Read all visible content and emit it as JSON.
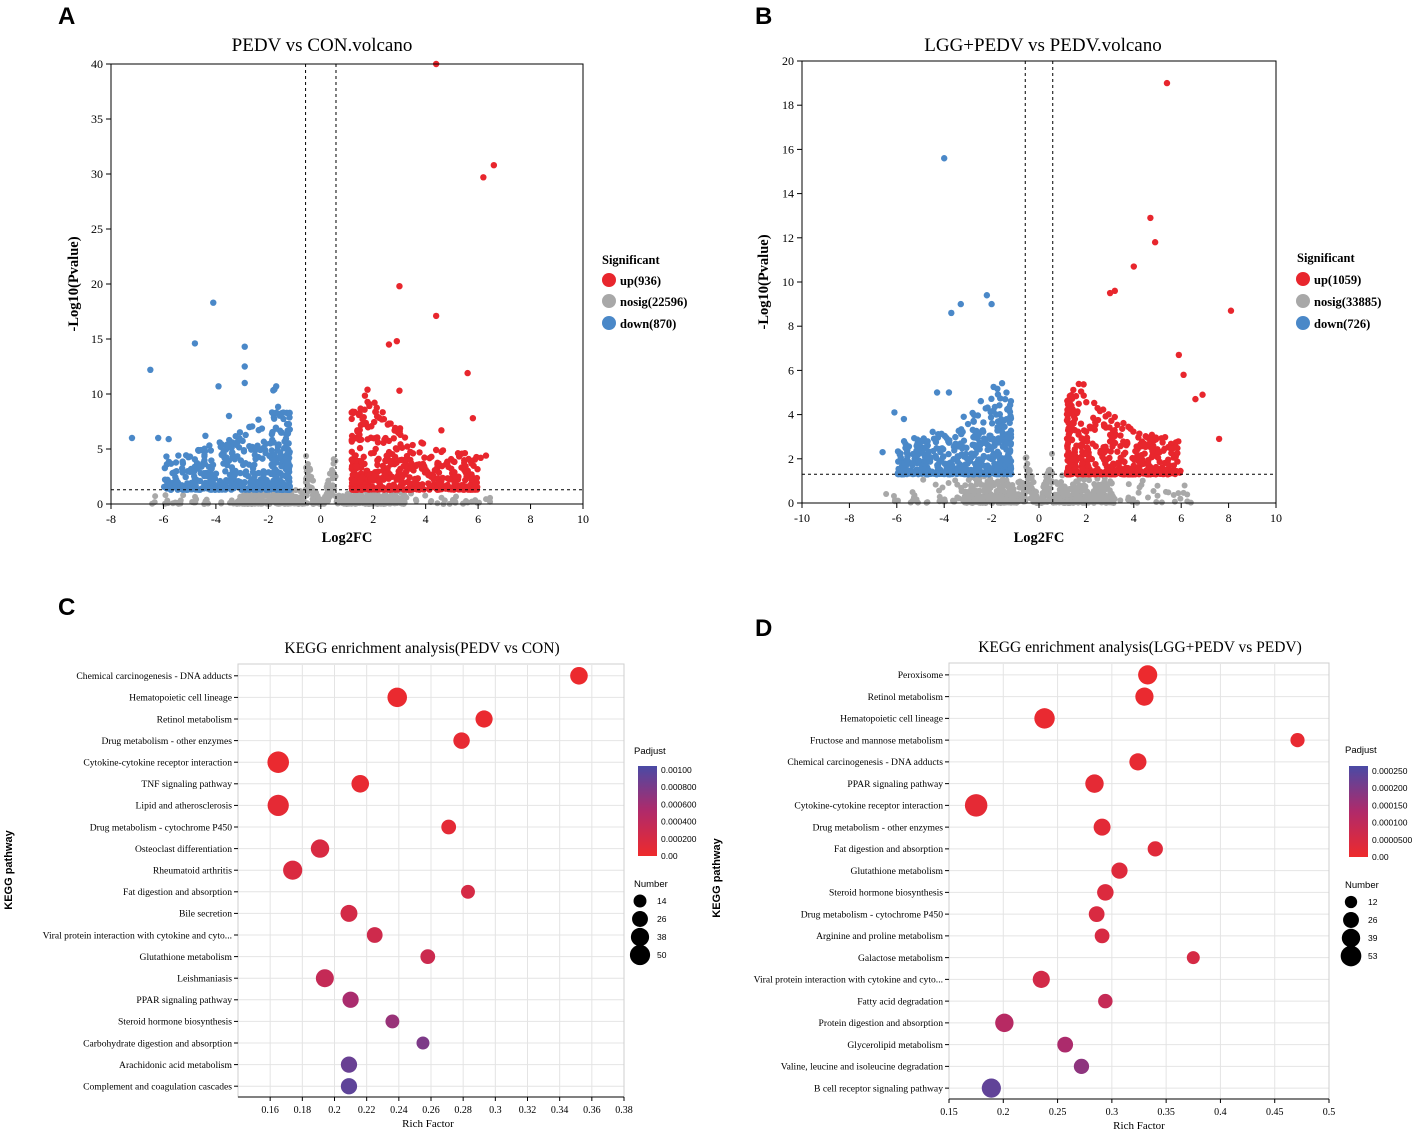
{
  "panel_labels": [
    "A",
    "B",
    "C",
    "D"
  ],
  "chart_data": [
    {
      "id": "A",
      "type": "scatter",
      "title": "PEDV vs CON.volcano",
      "xlabel": "Log2FC",
      "ylabel": "-Log10(Pvalue)",
      "xlim": [
        -8,
        10
      ],
      "ylim": [
        0,
        40
      ],
      "xticks": [
        -8,
        -6,
        -4,
        -2,
        0,
        2,
        4,
        6,
        8,
        10
      ],
      "yticks": [
        0,
        5,
        10,
        15,
        20,
        25,
        30,
        35,
        40
      ],
      "fc_threshold": 0.58,
      "p_threshold": 1.3,
      "legend": {
        "title": "Significant",
        "items": [
          {
            "label": "up(936)",
            "color": "#e8262d"
          },
          {
            "label": "nosig(22596)",
            "color": "#a8a8a8"
          },
          {
            "label": "down(870)",
            "color": "#4a88c8"
          }
        ]
      },
      "highlight_points": {
        "up": [
          [
            4.4,
            40
          ],
          [
            6.6,
            30.8
          ],
          [
            6.2,
            29.7
          ],
          [
            3.0,
            19.8
          ],
          [
            4.4,
            17.1
          ],
          [
            2.9,
            14.8
          ],
          [
            2.6,
            14.5
          ],
          [
            5.6,
            11.9
          ],
          [
            3.0,
            10.3
          ],
          [
            5.8,
            7.8
          ],
          [
            6.3,
            4.4
          ],
          [
            6.1,
            4.2
          ],
          [
            4.6,
            6.7
          ]
        ],
        "down": [
          [
            -4.1,
            18.3
          ],
          [
            -4.8,
            14.6
          ],
          [
            -2.9,
            14.3
          ],
          [
            -6.5,
            12.2
          ],
          [
            -2.9,
            12.5
          ],
          [
            -1.7,
            10.7
          ],
          [
            -2.9,
            11.0
          ],
          [
            -3.9,
            10.7
          ],
          [
            -7.2,
            6.0
          ],
          [
            -6.2,
            6.0
          ],
          [
            -5.8,
            5.9
          ],
          [
            -4.4,
            6.2
          ],
          [
            -3.5,
            8.0
          ]
        ]
      }
    },
    {
      "id": "B",
      "type": "scatter",
      "title": "LGG+PEDV vs PEDV.volcano",
      "xlabel": "Log2FC",
      "ylabel": "-Log10(Pvalue)",
      "xlim": [
        -10,
        10
      ],
      "ylim": [
        0,
        20
      ],
      "xticks": [
        -10,
        -8,
        -6,
        -4,
        -2,
        0,
        2,
        4,
        6,
        8,
        10
      ],
      "yticks": [
        0,
        2,
        4,
        6,
        8,
        10,
        12,
        14,
        16,
        18,
        20
      ],
      "fc_threshold": 0.58,
      "p_threshold": 1.3,
      "legend": {
        "title": "Significant",
        "items": [
          {
            "label": "up(1059)",
            "color": "#e8262d"
          },
          {
            "label": "nosig(33885)",
            "color": "#a8a8a8"
          },
          {
            "label": "down(726)",
            "color": "#4a88c8"
          }
        ]
      },
      "highlight_points": {
        "up": [
          [
            5.4,
            19.0
          ],
          [
            4.7,
            12.9
          ],
          [
            4.9,
            11.8
          ],
          [
            4.0,
            10.7
          ],
          [
            3.2,
            9.6
          ],
          [
            8.1,
            8.7
          ],
          [
            3.0,
            9.5
          ],
          [
            7.6,
            2.9
          ],
          [
            5.9,
            6.7
          ],
          [
            6.1,
            5.8
          ],
          [
            6.6,
            4.7
          ],
          [
            6.9,
            4.9
          ]
        ],
        "down": [
          [
            -4.0,
            15.6
          ],
          [
            -2.2,
            9.4
          ],
          [
            -3.3,
            9.0
          ],
          [
            -3.7,
            8.6
          ],
          [
            -2.0,
            9.0
          ],
          [
            -6.1,
            4.1
          ],
          [
            -5.7,
            3.8
          ],
          [
            -6.6,
            2.3
          ],
          [
            -4.3,
            5.0
          ],
          [
            -3.8,
            5.0
          ],
          [
            -5.0,
            2.8
          ]
        ]
      }
    },
    {
      "id": "C",
      "type": "scatter",
      "title": "KEGG enrichment analysis(PEDV vs CON)",
      "xlabel": "Rich Factor",
      "ylabel": "KEGG pathway",
      "xlim": [
        0.14,
        0.38
      ],
      "xticks": [
        0.16,
        0.18,
        0.2,
        0.22,
        0.24,
        0.26,
        0.28,
        0.3,
        0.32,
        0.34,
        0.36,
        0.38
      ],
      "padj_max": 0.001,
      "padj_legend": {
        "title": "Padjust",
        "labels": [
          "0.00100",
          "0.000800",
          "0.000600",
          "0.000400",
          "0.000200",
          "0.00"
        ]
      },
      "size_legend": {
        "title": "Number",
        "values": [
          14,
          26,
          38,
          50
        ]
      },
      "pathways": [
        {
          "name": "Chemical carcinogenesis - DNA adducts",
          "rich_factor": 0.352,
          "number": 30,
          "padj": 2e-05
        },
        {
          "name": "Hematopoietic cell lineage",
          "rich_factor": 0.239,
          "number": 40,
          "padj": 3e-05
        },
        {
          "name": "Retinol metabolism",
          "rich_factor": 0.293,
          "number": 28,
          "padj": 3e-05
        },
        {
          "name": "Drug metabolism - other enzymes",
          "rich_factor": 0.279,
          "number": 25,
          "padj": 6e-05
        },
        {
          "name": "Cytokine-cytokine receptor interaction",
          "rich_factor": 0.165,
          "number": 52,
          "padj": 3e-05
        },
        {
          "name": "TNF signaling pathway",
          "rich_factor": 0.216,
          "number": 30,
          "padj": 5e-05
        },
        {
          "name": "Lipid and atherosclerosis",
          "rich_factor": 0.165,
          "number": 50,
          "padj": 7e-05
        },
        {
          "name": "Drug metabolism - cytochrome P450",
          "rich_factor": 0.271,
          "number": 18,
          "padj": 8e-05
        },
        {
          "name": "Osteoclast differentiation",
          "rich_factor": 0.191,
          "number": 34,
          "padj": 0.00018
        },
        {
          "name": "Rheumatoid arthritis",
          "rich_factor": 0.174,
          "number": 38,
          "padj": 0.00016
        },
        {
          "name": "Fat digestion and absorption",
          "rich_factor": 0.283,
          "number": 15,
          "padj": 0.0002
        },
        {
          "name": "Bile secretion",
          "rich_factor": 0.209,
          "number": 27,
          "padj": 0.00022
        },
        {
          "name": "Viral protein interaction with cytokine and cyto...",
          "rich_factor": 0.225,
          "number": 22,
          "padj": 0.00026
        },
        {
          "name": "Glutathione metabolism",
          "rich_factor": 0.258,
          "number": 18,
          "padj": 0.00028
        },
        {
          "name": "Leishmaniasis",
          "rich_factor": 0.194,
          "number": 32,
          "padj": 0.00034
        },
        {
          "name": "PPAR signaling pathway",
          "rich_factor": 0.21,
          "number": 24,
          "padj": 0.00053
        },
        {
          "name": "Steroid hormone biosynthesis",
          "rich_factor": 0.236,
          "number": 15,
          "padj": 0.00062
        },
        {
          "name": "Carbohydrate digestion and absorption",
          "rich_factor": 0.255,
          "number": 12,
          "padj": 0.00075
        },
        {
          "name": "Arachidonic acid metabolism",
          "rich_factor": 0.209,
          "number": 24,
          "padj": 0.00085
        },
        {
          "name": "Complement and coagulation cascades",
          "rich_factor": 0.209,
          "number": 24,
          "padj": 0.0009
        }
      ]
    },
    {
      "id": "D",
      "type": "scatter",
      "title": "KEGG enrichment analysis(LGG+PEDV vs PEDV)",
      "xlabel": "Rich Factor",
      "ylabel": "KEGG pathway",
      "xlim": [
        0.15,
        0.5
      ],
      "xticks": [
        0.15,
        0.2,
        0.25,
        0.3,
        0.35,
        0.4,
        0.45,
        0.5
      ],
      "padj_max": 0.00027,
      "padj_legend": {
        "title": "Padjust",
        "labels": [
          "0.000250",
          "0.000200",
          "0.000150",
          "0.000100",
          "0.0000500",
          "0.00"
        ]
      },
      "size_legend": {
        "title": "Number",
        "values": [
          12,
          26,
          39,
          53
        ]
      },
      "pathways": [
        {
          "name": "Peroxisome",
          "rich_factor": 0.333,
          "number": 38,
          "padj": 5e-06
        },
        {
          "name": "Retinol metabolism",
          "rich_factor": 0.33,
          "number": 33,
          "padj": 8e-06
        },
        {
          "name": "Hematopoietic cell lineage",
          "rich_factor": 0.238,
          "number": 45,
          "padj": 1e-05
        },
        {
          "name": "Fructose and mannose metabolism",
          "rich_factor": 0.471,
          "number": 16,
          "padj": 1.2e-05
        },
        {
          "name": "Chemical carcinogenesis - DNA adducts",
          "rich_factor": 0.324,
          "number": 28,
          "padj": 1.5e-05
        },
        {
          "name": "PPAR signaling pathway",
          "rich_factor": 0.284,
          "number": 34,
          "padj": 2e-05
        },
        {
          "name": "Cytokine-cytokine receptor interaction",
          "rich_factor": 0.175,
          "number": 58,
          "padj": 2e-05
        },
        {
          "name": "Drug metabolism - other enzymes",
          "rich_factor": 0.291,
          "number": 27,
          "padj": 2.5e-05
        },
        {
          "name": "Fat digestion and absorption",
          "rich_factor": 0.34,
          "number": 20,
          "padj": 3e-05
        },
        {
          "name": "Glutathione metabolism",
          "rich_factor": 0.307,
          "number": 24,
          "padj": 3.5e-05
        },
        {
          "name": "Steroid hormone biosynthesis",
          "rich_factor": 0.294,
          "number": 25,
          "padj": 4e-05
        },
        {
          "name": "Drug metabolism - cytochrome P450",
          "rich_factor": 0.286,
          "number": 22,
          "padj": 4.5e-05
        },
        {
          "name": "Arginine and proline metabolism",
          "rich_factor": 0.291,
          "number": 18,
          "padj": 5e-05
        },
        {
          "name": "Galactose metabolism",
          "rich_factor": 0.375,
          "number": 12,
          "padj": 5.5e-05
        },
        {
          "name": "Viral protein interaction with cytokine and cyto...",
          "rich_factor": 0.235,
          "number": 28,
          "padj": 6e-05
        },
        {
          "name": "Fatty acid degradation",
          "rich_factor": 0.294,
          "number": 17,
          "padj": 9e-05
        },
        {
          "name": "Protein digestion and absorption",
          "rich_factor": 0.201,
          "number": 34,
          "padj": 0.00012
        },
        {
          "name": "Glycerolipid metabolism",
          "rich_factor": 0.257,
          "number": 22,
          "padj": 0.00014
        },
        {
          "name": "Valine, leucine and isoleucine degradation",
          "rich_factor": 0.272,
          "number": 20,
          "padj": 0.00018
        },
        {
          "name": "B cell receptor signaling pathway",
          "rich_factor": 0.189,
          "number": 38,
          "padj": 0.00024
        }
      ]
    }
  ]
}
